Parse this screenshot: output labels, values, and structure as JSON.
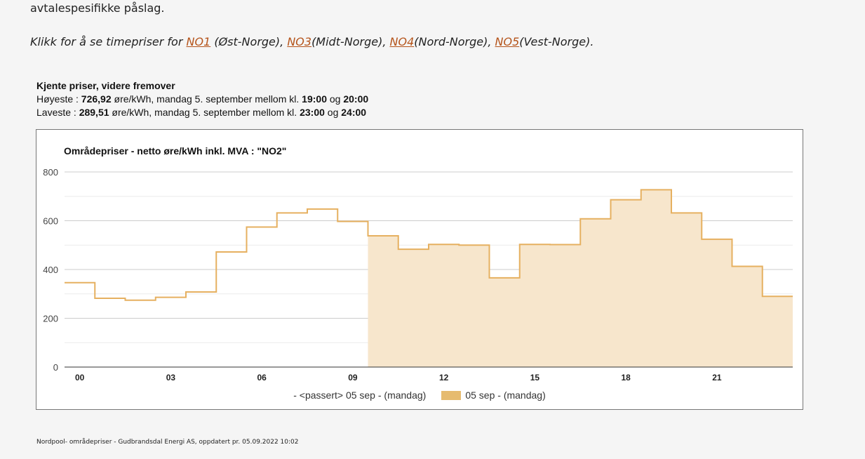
{
  "intro": {
    "text": "avtalespesifikke påslag."
  },
  "links": {
    "prefix": "Klikk for å se timepriser for ",
    "no1": "NO1",
    "no1_desc": " (Øst-Norge), ",
    "no3": "NO3",
    "no3_desc": "(Midt-Norge), ",
    "no4": "NO4",
    "no4_desc": "(Nord-Norge), ",
    "no5": "NO5",
    "no5_desc": "(Vest-Norge)."
  },
  "known_prices": {
    "heading": "Kjente priser, videre fremover",
    "high_label": "Høyeste : ",
    "high_value": "726,92",
    "high_mid": " øre/kWh, mandag 5. september mellom kl. ",
    "high_from": "19:00",
    "and": " og ",
    "high_to": "20:00",
    "low_label": "Laveste : ",
    "low_value": "289,51",
    "low_mid": " øre/kWh, mandag 5. september mellom kl. ",
    "low_from": "23:00",
    "low_to": "24:00"
  },
  "colors": {
    "line": "#e6b060",
    "fill": "#f7e6cc",
    "legend_swatch": "#e6bb6f",
    "link": "#b5541b"
  },
  "chart_data": {
    "type": "area",
    "title": "Områdepriser - netto øre/kWh inkl. MVA : \"NO2\"",
    "xlabel": "",
    "ylabel": "",
    "x_ticks": [
      "00",
      "03",
      "06",
      "09",
      "12",
      "15",
      "18",
      "21"
    ],
    "ylim": [
      0,
      800
    ],
    "y_ticks": [
      "0",
      "200",
      "400",
      "600",
      "800"
    ],
    "grid": true,
    "step": true,
    "hours": [
      0,
      1,
      2,
      3,
      4,
      5,
      6,
      7,
      8,
      9,
      10,
      11,
      12,
      13,
      14,
      15,
      16,
      17,
      18,
      19,
      20,
      21,
      22,
      23
    ],
    "values": [
      346,
      282,
      274,
      286,
      308,
      472,
      574,
      632,
      648,
      597,
      538,
      483,
      503,
      500,
      366,
      503,
      502,
      608,
      686,
      727,
      632,
      524,
      413,
      290
    ],
    "passed_until_hour": 10,
    "series": [
      {
        "name": "- <passert> 05 sep - (mandag)"
      },
      {
        "name": "05 sep - (mandag)"
      }
    ],
    "legend_position": "bottom"
  },
  "footer": {
    "text": "Nordpool- områdepriser - Gudbrandsdal Energi AS, oppdatert pr. 05.09.2022 10:02"
  }
}
